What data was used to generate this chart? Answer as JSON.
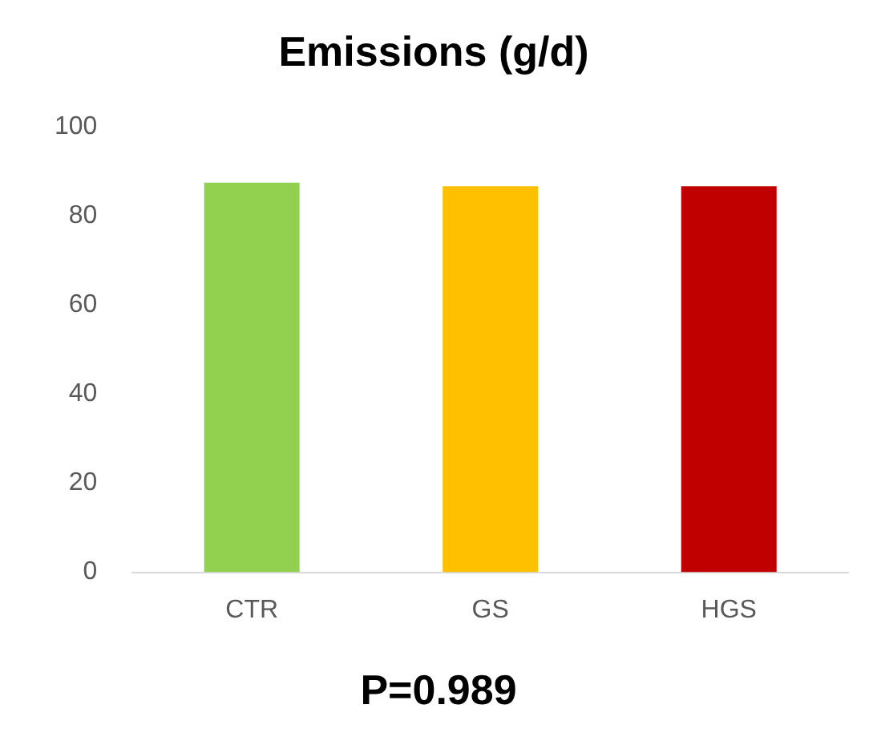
{
  "chart_data": {
    "type": "bar",
    "title": "Emissions (g/d)",
    "categories": [
      "CTR",
      "GS",
      "HGS"
    ],
    "values": [
      87.5,
      86.7,
      86.7
    ],
    "colors": [
      "#92d050",
      "#ffc000",
      "#c00000"
    ],
    "ylim": [
      0,
      100
    ],
    "yticks": [
      0,
      20,
      40,
      60,
      80,
      100
    ],
    "grid": false,
    "legend": false,
    "annotations": [
      "P=0.989"
    ]
  }
}
